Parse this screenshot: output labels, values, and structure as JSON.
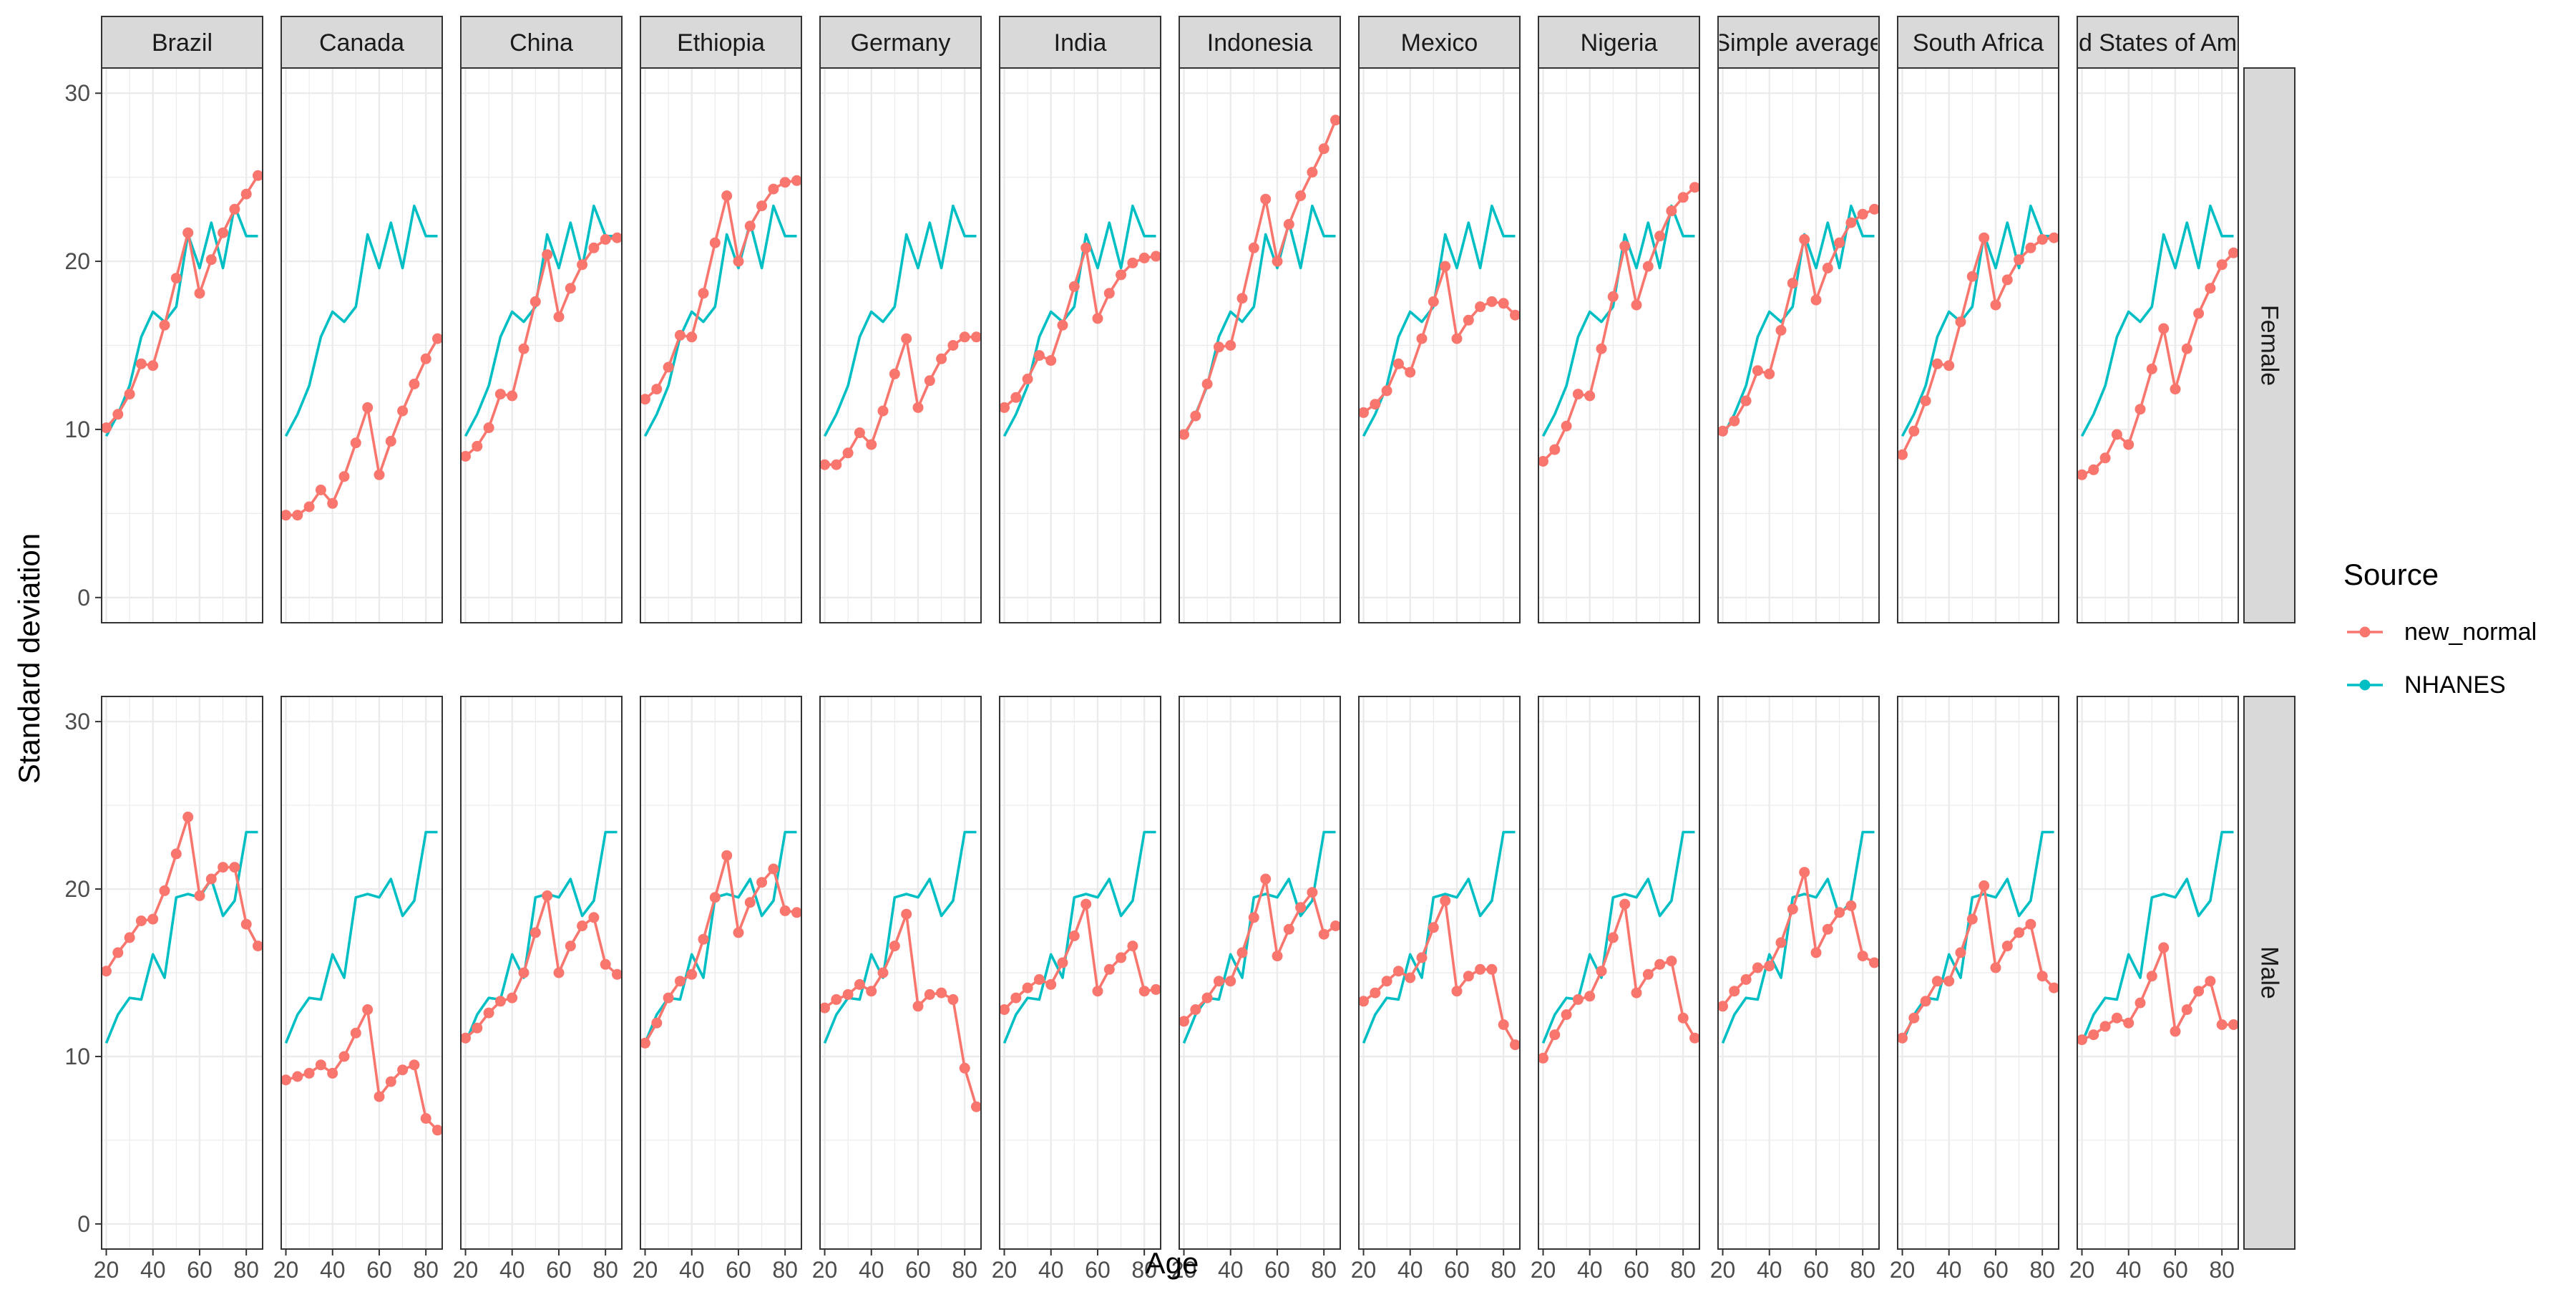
{
  "chart_data": {
    "type": "line",
    "facet_columns": [
      "Brazil",
      "Canada",
      "China",
      "Ethiopia",
      "Germany",
      "India",
      "Indonesia",
      "Mexico",
      "Nigeria",
      "Simple average",
      "South Africa",
      "United States of America"
    ],
    "facet_column_display": [
      "Brazil",
      "Canada",
      "China",
      "Ethiopia",
      "Germany",
      "India",
      "Indonesia",
      "Mexico",
      "Nigeria",
      "Simple average",
      "South Africa",
      "d States of Am"
    ],
    "facet_rows": [
      "Female",
      "Male"
    ],
    "xlabel": "Age",
    "ylabel": "Standard deviation",
    "x_ticks": [
      20,
      40,
      60,
      80
    ],
    "y_ticks": [
      0,
      10,
      20,
      30
    ],
    "xlim": [
      18,
      87
    ],
    "ylim": [
      -1.5,
      31.5
    ],
    "ages": [
      20,
      25,
      30,
      35,
      40,
      45,
      50,
      55,
      60,
      65,
      70,
      75,
      80,
      85
    ],
    "legend": {
      "title": "Source",
      "position": "right",
      "entries": [
        "new_normal",
        "NHANES"
      ]
    },
    "colors": {
      "new_normal": "#F8766D",
      "NHANES": "#00BFC4",
      "strip_fill": "#D9D9D9",
      "grid": "#EBEBEB",
      "border": "#333333"
    },
    "nhanes": {
      "Female": [
        9.6,
        10.9,
        12.6,
        15.5,
        17.0,
        16.4,
        17.3,
        21.6,
        19.6,
        22.3,
        19.6,
        23.3,
        21.5,
        21.5
      ],
      "Male": [
        10.8,
        12.5,
        13.5,
        13.4,
        16.1,
        14.7,
        19.5,
        19.7,
        19.5,
        20.6,
        18.4,
        19.3,
        23.4,
        23.4
      ]
    },
    "series": {
      "Brazil": {
        "Female": [
          10.1,
          10.9,
          12.1,
          13.9,
          13.8,
          16.2,
          19.0,
          21.7,
          18.1,
          20.1,
          21.7,
          23.1,
          24.0,
          25.1
        ],
        "Male": [
          15.1,
          16.2,
          17.1,
          18.1,
          18.2,
          19.9,
          22.1,
          24.3,
          19.6,
          20.6,
          21.3,
          21.3,
          17.9,
          16.6
        ]
      },
      "Canada": {
        "Female": [
          4.9,
          4.9,
          5.4,
          6.4,
          5.6,
          7.2,
          9.2,
          11.3,
          7.3,
          9.3,
          11.1,
          12.7,
          14.2,
          15.4
        ],
        "Male": [
          8.6,
          8.8,
          9.0,
          9.5,
          9.0,
          10.0,
          11.4,
          12.8,
          7.6,
          8.5,
          9.2,
          9.5,
          6.3,
          5.6
        ]
      },
      "China": {
        "Female": [
          8.4,
          9.0,
          10.1,
          12.1,
          12.0,
          14.8,
          17.6,
          20.4,
          16.7,
          18.4,
          19.8,
          20.8,
          21.3,
          21.4
        ],
        "Male": [
          11.1,
          11.7,
          12.6,
          13.3,
          13.5,
          15.0,
          17.4,
          19.6,
          15.0,
          16.6,
          17.8,
          18.3,
          15.5,
          14.9
        ]
      },
      "Ethiopia": {
        "Female": [
          11.8,
          12.4,
          13.7,
          15.6,
          15.5,
          18.1,
          21.1,
          23.9,
          20.0,
          22.1,
          23.3,
          24.3,
          24.7,
          24.8
        ],
        "Male": [
          10.8,
          12.0,
          13.5,
          14.5,
          14.9,
          17.0,
          19.5,
          22.0,
          17.4,
          19.2,
          20.4,
          21.2,
          18.7,
          18.6
        ]
      },
      "Germany": {
        "Female": [
          7.9,
          7.9,
          8.6,
          9.8,
          9.1,
          11.1,
          13.3,
          15.4,
          11.3,
          12.9,
          14.2,
          15.0,
          15.5,
          15.5
        ],
        "Male": [
          12.9,
          13.4,
          13.7,
          14.3,
          13.9,
          15.0,
          16.6,
          18.5,
          13.0,
          13.7,
          13.8,
          13.4,
          9.3,
          7.0
        ]
      },
      "India": {
        "Female": [
          11.3,
          11.9,
          13.0,
          14.4,
          14.1,
          16.2,
          18.5,
          20.8,
          16.6,
          18.1,
          19.2,
          19.9,
          20.2,
          20.3
        ],
        "Male": [
          12.8,
          13.5,
          14.1,
          14.6,
          14.3,
          15.6,
          17.2,
          19.1,
          13.9,
          15.2,
          15.9,
          16.6,
          13.9,
          14.0
        ]
      },
      "Indonesia": {
        "Female": [
          9.7,
          10.8,
          12.7,
          14.9,
          15.0,
          17.8,
          20.8,
          23.7,
          20.0,
          22.2,
          23.9,
          25.3,
          26.7,
          28.4
        ],
        "Male": [
          12.1,
          12.8,
          13.5,
          14.5,
          14.5,
          16.2,
          18.3,
          20.6,
          16.0,
          17.6,
          18.9,
          19.8,
          17.3,
          17.8
        ]
      },
      "Mexico": {
        "Female": [
          11.0,
          11.5,
          12.3,
          13.9,
          13.4,
          15.4,
          17.6,
          19.7,
          15.4,
          16.5,
          17.3,
          17.6,
          17.5,
          16.8
        ],
        "Male": [
          13.3,
          13.8,
          14.5,
          15.1,
          14.7,
          15.9,
          17.7,
          19.3,
          13.9,
          14.8,
          15.2,
          15.2,
          11.9,
          10.7
        ]
      },
      "Nigeria": {
        "Female": [
          8.1,
          8.8,
          10.2,
          12.1,
          12.0,
          14.8,
          17.9,
          20.9,
          17.4,
          19.7,
          21.5,
          23.0,
          23.8,
          24.4
        ],
        "Male": [
          9.9,
          11.3,
          12.5,
          13.4,
          13.6,
          15.1,
          17.1,
          19.1,
          13.8,
          14.9,
          15.5,
          15.7,
          12.3,
          11.1
        ]
      },
      "Simple average": {
        "Female": [
          9.9,
          10.5,
          11.7,
          13.5,
          13.3,
          15.9,
          18.7,
          21.3,
          17.7,
          19.6,
          21.1,
          22.3,
          22.8,
          23.1
        ],
        "Male": [
          13.0,
          13.9,
          14.6,
          15.3,
          15.4,
          16.8,
          18.8,
          21.0,
          16.2,
          17.6,
          18.6,
          19.0,
          16.0,
          15.6
        ]
      },
      "South Africa": {
        "Female": [
          8.5,
          9.9,
          11.7,
          13.9,
          13.8,
          16.4,
          19.1,
          21.4,
          17.4,
          18.9,
          20.1,
          20.8,
          21.3,
          21.4
        ],
        "Male": [
          11.1,
          12.3,
          13.3,
          14.5,
          14.5,
          16.2,
          18.2,
          20.2,
          15.3,
          16.6,
          17.4,
          17.9,
          14.8,
          14.1
        ]
      },
      "United States of America": {
        "Female": [
          7.3,
          7.6,
          8.3,
          9.7,
          9.1,
          11.2,
          13.6,
          16.0,
          12.4,
          14.8,
          16.9,
          18.4,
          19.8,
          20.5
        ],
        "Male": [
          11.0,
          11.3,
          11.8,
          12.3,
          12.0,
          13.2,
          14.8,
          16.5,
          11.5,
          12.8,
          13.9,
          14.5,
          11.9,
          11.9
        ]
      }
    }
  }
}
